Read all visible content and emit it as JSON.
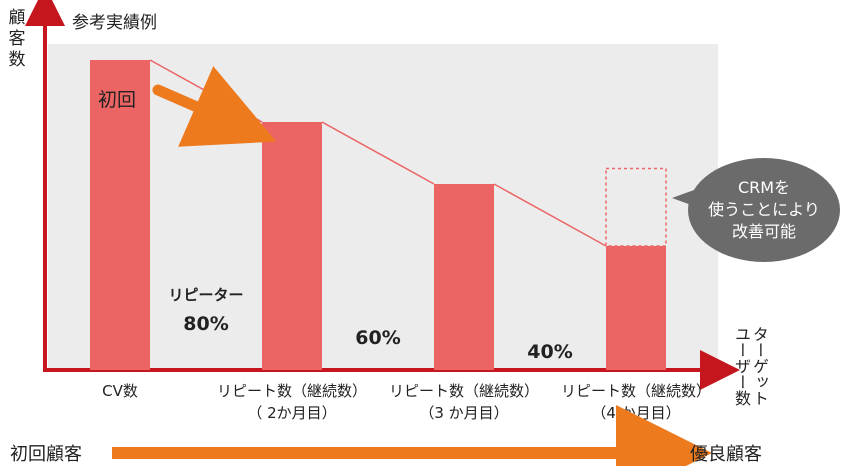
{
  "title": "参考実績例",
  "y_axis_label": "顧客数",
  "x_axis_label": "ターゲットユーザー数",
  "bottom_left_label": "初回顧客",
  "bottom_right_label": "優良顧客",
  "first_label": "初回",
  "repeat_rate_label": "リピーター",
  "bubble_lines": [
    "CRMを",
    "使うことにより",
    "改善可能"
  ],
  "colors": {
    "bar": "#ec6464",
    "arrow": "#ee7a1e",
    "axis": "#c4161c",
    "panel": "#ececec",
    "bubble": "#6b6b6b"
  },
  "chart_data": {
    "type": "bar",
    "title": "参考実績例",
    "ylabel": "顧客数",
    "xlabel": "ターゲットユーザー数",
    "categories": [
      [
        "CV数"
      ],
      [
        "リピート数（継続数）",
        "（ 2か月目）"
      ],
      [
        "リピート数（継続数）",
        "（3 か月目）"
      ],
      [
        "リピート数（継続数）",
        "（4 か月目）"
      ]
    ],
    "values": [
      100,
      80,
      60,
      40
    ],
    "improved_potential": 65,
    "rates": [
      "80%",
      "60%",
      "40%"
    ],
    "ylim": [
      0,
      100
    ],
    "grid": false,
    "legend": "none"
  }
}
